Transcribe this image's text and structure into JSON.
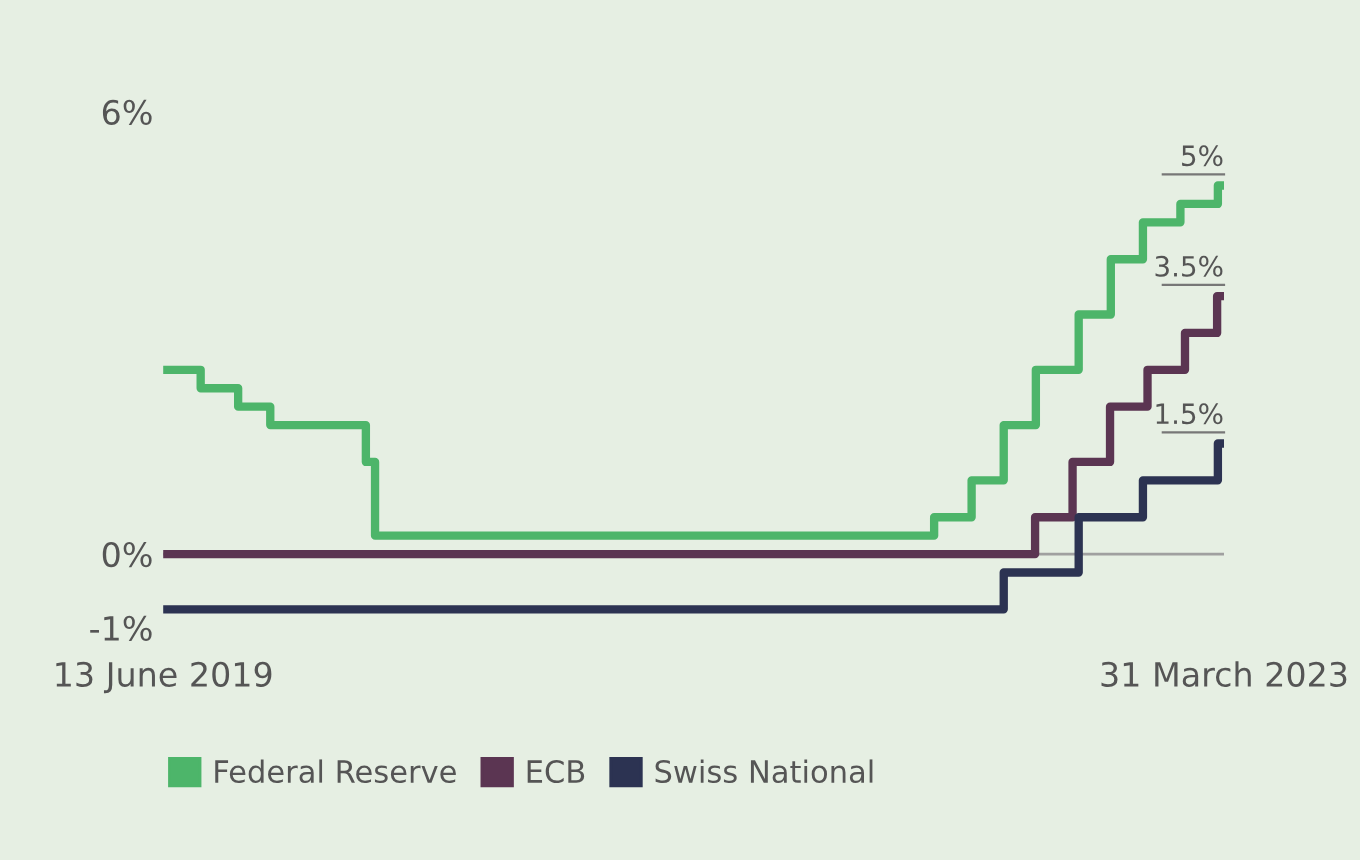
{
  "chart_data": {
    "type": "step",
    "series": [
      {
        "name": "Federal Reserve",
        "color": "#4db56a",
        "x": [
          "2019-06-13",
          "2019-08-01",
          "2019-09-19",
          "2019-10-31",
          "2020-03-04",
          "2020-03-16",
          "2022-03-17",
          "2022-05-05",
          "2022-06-16",
          "2022-07-28",
          "2022-09-22",
          "2022-11-03",
          "2022-12-15",
          "2023-02-02",
          "2023-03-23",
          "2023-03-31"
        ],
        "values": [
          2.5,
          2.25,
          2.0,
          1.75,
          1.25,
          0.25,
          0.5,
          1.0,
          1.75,
          2.5,
          3.25,
          4.0,
          4.5,
          4.75,
          5.0,
          5.0
        ]
      },
      {
        "name": "ECB",
        "color": "#5b3552",
        "x": [
          "2019-06-13",
          "2022-07-27",
          "2022-09-14",
          "2022-11-02",
          "2022-12-21",
          "2023-02-08",
          "2023-03-22",
          "2023-03-31"
        ],
        "values": [
          0,
          0.5,
          1.25,
          2.0,
          2.5,
          3.0,
          3.5,
          3.5
        ]
      },
      {
        "name": "Swiss National",
        "color": "#2c3352",
        "x": [
          "2019-06-13",
          "2022-06-16",
          "2022-09-22",
          "2022-12-15",
          "2023-03-23",
          "2023-03-31"
        ],
        "values": [
          -0.75,
          -0.25,
          0.5,
          1.0,
          1.5,
          1.5
        ]
      }
    ],
    "xlim": [
      "2019-06-13",
      "2023-03-31"
    ],
    "xticks": [
      {
        "value": "2019-06-13",
        "label": "13 June 2019"
      },
      {
        "value": "2023-03-31",
        "label": "31 March 2023"
      }
    ],
    "ylim": [
      -1,
      6
    ],
    "yticks": [
      {
        "value": 6,
        "label": "6%"
      },
      {
        "value": 0,
        "label": "0%"
      },
      {
        "value": -1,
        "label": "-1%"
      }
    ],
    "ref_lines": [
      {
        "axis": "y",
        "value": 0,
        "color": "#a0a0a0"
      }
    ],
    "annotations": [
      {
        "text": "5%",
        "x": "2023-03-31",
        "y": 5.0
      },
      {
        "text": "3.5%",
        "x": "2023-03-31",
        "y": 3.5
      },
      {
        "text": "1.5%",
        "x": "2023-03-31",
        "y": 1.5
      }
    ],
    "grid": false,
    "legend": "bottom left",
    "line_style": "solid",
    "marker": "none"
  }
}
